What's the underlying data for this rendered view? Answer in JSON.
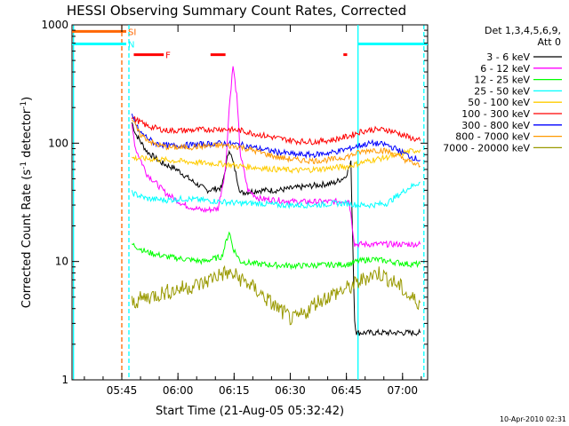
{
  "chart_data": {
    "type": "line",
    "title": "HESSI Observing Summary Count Rates, Corrected",
    "xlabel": "Start Time (21-Aug-05 05:32:42)",
    "ylabel_main": "Corrected Count Rate (s",
    "ylabel_sup1": "-1",
    "ylabel_mid": " detector",
    "ylabel_sup2": "-1",
    "ylabel_end": ")",
    "footer": "10-Apr-2010 02:31",
    "yscale": "log",
    "xlim": [
      0,
      95
    ],
    "ylim": [
      1,
      1000
    ],
    "x_ticks": [
      {
        "t": 13.3,
        "label": "05:45"
      },
      {
        "t": 28.3,
        "label": "06:00"
      },
      {
        "t": 43.3,
        "label": "06:15"
      },
      {
        "t": 58.3,
        "label": "06:30"
      },
      {
        "t": 73.3,
        "label": "06:45"
      },
      {
        "t": 88.3,
        "label": "07:00"
      }
    ],
    "y_ticks": [
      {
        "v": 1,
        "label": "1"
      },
      {
        "v": 10,
        "label": "10"
      },
      {
        "v": 100,
        "label": "100"
      },
      {
        "v": 1000,
        "label": "1000"
      }
    ],
    "legend_header": [
      "Det 1,3,4,5,6,9,",
      "Att 0"
    ],
    "series": [
      {
        "name": "3 - 6 keV",
        "color": "#000000",
        "points": [
          [
            16,
            150
          ],
          [
            17,
            120
          ],
          [
            20,
            85
          ],
          [
            24,
            68
          ],
          [
            28,
            60
          ],
          [
            32,
            48
          ],
          [
            36,
            40
          ],
          [
            40,
            42
          ],
          [
            42,
            90
          ],
          [
            43.5,
            60
          ],
          [
            45,
            38
          ],
          [
            50,
            40
          ],
          [
            55,
            40
          ],
          [
            60,
            42
          ],
          [
            65,
            44
          ],
          [
            70,
            46
          ],
          [
            73,
            52
          ],
          [
            74.5,
            68
          ],
          [
            75.5,
            3.2
          ],
          [
            76,
            2.5
          ],
          [
            80,
            2.5
          ],
          [
            85,
            2.5
          ],
          [
            90,
            2.5
          ],
          [
            93,
            2.5
          ]
        ]
      },
      {
        "name": "6 - 12 keV",
        "color": "#ff00ff",
        "points": [
          [
            16,
            140
          ],
          [
            17,
            90
          ],
          [
            20,
            55
          ],
          [
            25,
            38
          ],
          [
            30,
            30
          ],
          [
            35,
            27
          ],
          [
            39,
            28
          ],
          [
            41,
            60
          ],
          [
            42,
            200
          ],
          [
            43,
            450
          ],
          [
            44,
            250
          ],
          [
            45,
            80
          ],
          [
            47,
            40
          ],
          [
            50,
            34
          ],
          [
            55,
            33
          ],
          [
            60,
            32
          ],
          [
            65,
            32
          ],
          [
            70,
            32
          ],
          [
            74,
            33
          ],
          [
            75.5,
            14
          ],
          [
            80,
            14
          ],
          [
            85,
            14
          ],
          [
            90,
            14
          ],
          [
            93,
            14
          ]
        ]
      },
      {
        "name": "12 - 25 keV",
        "color": "#00ff00",
        "points": [
          [
            16,
            14
          ],
          [
            20,
            12
          ],
          [
            25,
            11
          ],
          [
            30,
            10.5
          ],
          [
            35,
            10
          ],
          [
            40,
            11
          ],
          [
            42,
            18
          ],
          [
            43,
            13
          ],
          [
            45,
            10
          ],
          [
            50,
            9.5
          ],
          [
            55,
            9.3
          ],
          [
            60,
            9.2
          ],
          [
            65,
            9.3
          ],
          [
            70,
            9.4
          ],
          [
            74,
            9.5
          ],
          [
            76,
            10
          ],
          [
            80,
            10.5
          ],
          [
            85,
            10
          ],
          [
            90,
            9.5
          ],
          [
            93,
            9.5
          ]
        ]
      },
      {
        "name": "25 - 50 keV",
        "color": "#00ffff",
        "points": [
          [
            16,
            38
          ],
          [
            20,
            34
          ],
          [
            25,
            33
          ],
          [
            30,
            34
          ],
          [
            35,
            33
          ],
          [
            40,
            32
          ],
          [
            45,
            31
          ],
          [
            50,
            31
          ],
          [
            55,
            30
          ],
          [
            60,
            30
          ],
          [
            65,
            30
          ],
          [
            70,
            31
          ],
          [
            74,
            31
          ],
          [
            76,
            30
          ],
          [
            80,
            30
          ],
          [
            84,
            31
          ],
          [
            87,
            36
          ],
          [
            90,
            42
          ],
          [
            93,
            47
          ]
        ]
      },
      {
        "name": "50 - 100 keV",
        "color": "#ffcc00",
        "points": [
          [
            16,
            75
          ],
          [
            20,
            74
          ],
          [
            25,
            72
          ],
          [
            30,
            70
          ],
          [
            35,
            68
          ],
          [
            40,
            67
          ],
          [
            45,
            64
          ],
          [
            50,
            62
          ],
          [
            55,
            60
          ],
          [
            60,
            59
          ],
          [
            65,
            60
          ],
          [
            70,
            62
          ],
          [
            74,
            64
          ],
          [
            77,
            68
          ],
          [
            80,
            72
          ],
          [
            84,
            76
          ],
          [
            87,
            80
          ],
          [
            90,
            85
          ],
          [
            93,
            88
          ]
        ]
      },
      {
        "name": "100 - 300 keV",
        "color": "#ff0000",
        "points": [
          [
            16,
            165
          ],
          [
            20,
            140
          ],
          [
            25,
            128
          ],
          [
            30,
            128
          ],
          [
            35,
            130
          ],
          [
            40,
            132
          ],
          [
            45,
            128
          ],
          [
            50,
            118
          ],
          [
            55,
            110
          ],
          [
            60,
            104
          ],
          [
            65,
            103
          ],
          [
            70,
            107
          ],
          [
            74,
            115
          ],
          [
            77,
            125
          ],
          [
            80,
            130
          ],
          [
            84,
            130
          ],
          [
            87,
            122
          ],
          [
            90,
            112
          ],
          [
            93,
            105
          ]
        ]
      },
      {
        "name": "300 - 800 keV",
        "color": "#0000ff",
        "points": [
          [
            16,
            170
          ],
          [
            18,
            125
          ],
          [
            22,
            100
          ],
          [
            26,
            95
          ],
          [
            30,
            96
          ],
          [
            35,
            98
          ],
          [
            40,
            100
          ],
          [
            45,
            97
          ],
          [
            50,
            90
          ],
          [
            55,
            84
          ],
          [
            60,
            80
          ],
          [
            65,
            80
          ],
          [
            70,
            84
          ],
          [
            74,
            90
          ],
          [
            77,
            96
          ],
          [
            80,
            100
          ],
          [
            84,
            97
          ],
          [
            87,
            88
          ],
          [
            90,
            78
          ],
          [
            93,
            72
          ]
        ]
      },
      {
        "name": "800 - 7000 keV",
        "color": "#ff9900",
        "points": [
          [
            16,
            160
          ],
          [
            18,
            120
          ],
          [
            22,
            98
          ],
          [
            26,
            92
          ],
          [
            30,
            92
          ],
          [
            35,
            94
          ],
          [
            40,
            96
          ],
          [
            45,
            93
          ],
          [
            50,
            84
          ],
          [
            55,
            76
          ],
          [
            60,
            72
          ],
          [
            65,
            71
          ],
          [
            70,
            73
          ],
          [
            74,
            78
          ],
          [
            77,
            84
          ],
          [
            80,
            88
          ],
          [
            84,
            86
          ],
          [
            87,
            78
          ],
          [
            90,
            70
          ],
          [
            93,
            64
          ]
        ]
      },
      {
        "name": "7000 - 20000 keV",
        "color": "#999900",
        "points": [
          [
            16,
            4.5
          ],
          [
            20,
            5
          ],
          [
            25,
            5.5
          ],
          [
            30,
            6
          ],
          [
            35,
            6.5
          ],
          [
            38,
            7.5
          ],
          [
            41,
            8
          ],
          [
            44,
            7.5
          ],
          [
            47,
            6.5
          ],
          [
            50,
            5.5
          ],
          [
            53,
            4.5
          ],
          [
            56,
            3.8
          ],
          [
            59,
            3.2
          ],
          [
            62,
            3.6
          ],
          [
            65,
            4.5
          ],
          [
            68,
            5
          ],
          [
            71,
            5.5
          ],
          [
            74,
            6
          ],
          [
            76,
            6.5
          ],
          [
            79,
            7.5
          ],
          [
            82,
            8
          ],
          [
            85,
            7
          ],
          [
            88,
            6
          ],
          [
            90,
            5
          ],
          [
            93,
            4.5
          ]
        ]
      }
    ],
    "flag_bars": [
      {
        "label": "SI",
        "color": "#ff6600",
        "t0": 0,
        "t1": 14.5,
        "y": 880
      },
      {
        "label": "N",
        "color": "#00ffff",
        "t0": 0,
        "t1": 14.5,
        "y": 690
      },
      {
        "label": "",
        "color": "#00ffff",
        "t0": 76.5,
        "t1": 95,
        "y": 690
      },
      {
        "label": "F",
        "color": "#ff0000",
        "t0": 16.5,
        "t1": 24.5,
        "y": 560
      },
      {
        "label": "",
        "color": "#ff0000",
        "t0": 37,
        "t1": 41,
        "y": 560
      },
      {
        "label": "",
        "color": "#ff0000",
        "t0": 72.5,
        "t1": 73.5,
        "y": 560
      }
    ],
    "vlines": [
      {
        "t": 13.3,
        "color": "#ff6600",
        "style": "dashed"
      },
      {
        "t": 15.2,
        "color": "#00ffff",
        "style": "dashed"
      },
      {
        "t": 94,
        "color": "#00ffff",
        "style": "dashed"
      },
      {
        "t": 0.4,
        "color": "#00ffff",
        "style": "solid"
      },
      {
        "t": 76.4,
        "color": "#00ffff",
        "style": "solid"
      }
    ]
  }
}
